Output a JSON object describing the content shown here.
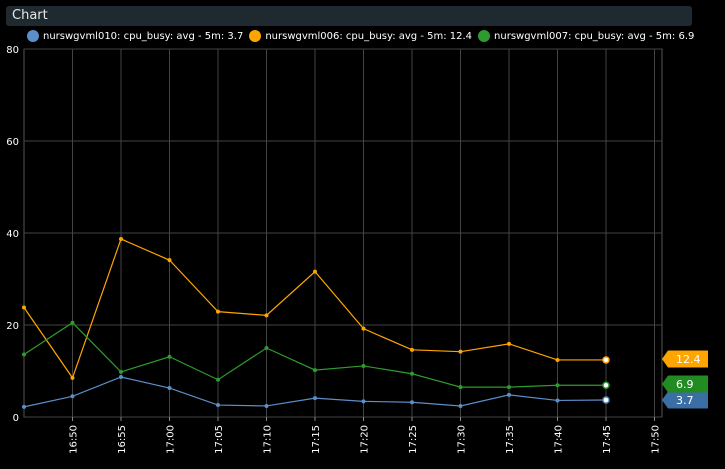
{
  "header": {
    "title": "Chart"
  },
  "chart_data": {
    "type": "line",
    "x": [
      "16:45",
      "16:50",
      "16:55",
      "17:00",
      "17:05",
      "17:10",
      "17:15",
      "17:20",
      "17:25",
      "17:30",
      "17:35",
      "17:40",
      "17:45"
    ],
    "x_ticks": [
      "16:50",
      "16:55",
      "17:00",
      "17:05",
      "17:10",
      "17:15",
      "17:20",
      "17:25",
      "17:30",
      "17:35",
      "17:40",
      "17:45",
      "17:50"
    ],
    "y_ticks": [
      "0",
      "20",
      "40",
      "60",
      "80"
    ],
    "ylim": [
      0,
      80
    ],
    "grid": true,
    "legend_position": "top-left",
    "series": [
      {
        "name": "nurswgvml010: cpu_busy: avg - 5m: 3.7",
        "color": "#5b8fc9",
        "badge": "3.7",
        "badge_color": "#3a6ea5",
        "values": [
          2.2,
          4.5,
          8.7,
          6.3,
          2.6,
          2.4,
          4.1,
          3.4,
          3.2,
          2.4,
          4.8,
          3.6,
          3.7
        ]
      },
      {
        "name": "nurswgvml006: cpu_busy: avg - 5m: 12.4",
        "color": "#ffa500",
        "badge": "12.4",
        "badge_color": "#ffa500",
        "values": [
          23.8,
          8.5,
          38.7,
          34.1,
          22.9,
          22.1,
          31.6,
          19.2,
          14.6,
          14.2,
          15.9,
          12.4,
          12.4
        ]
      },
      {
        "name": "nurswgvml007: cpu_busy: avg - 5m: 6.9",
        "color": "#2e9b2e",
        "badge": "6.9",
        "badge_color": "#228b22",
        "values": [
          13.6,
          20.5,
          9.8,
          13.1,
          8.1,
          15.0,
          10.2,
          11.1,
          9.4,
          6.5,
          6.5,
          6.9,
          6.9
        ]
      }
    ]
  }
}
